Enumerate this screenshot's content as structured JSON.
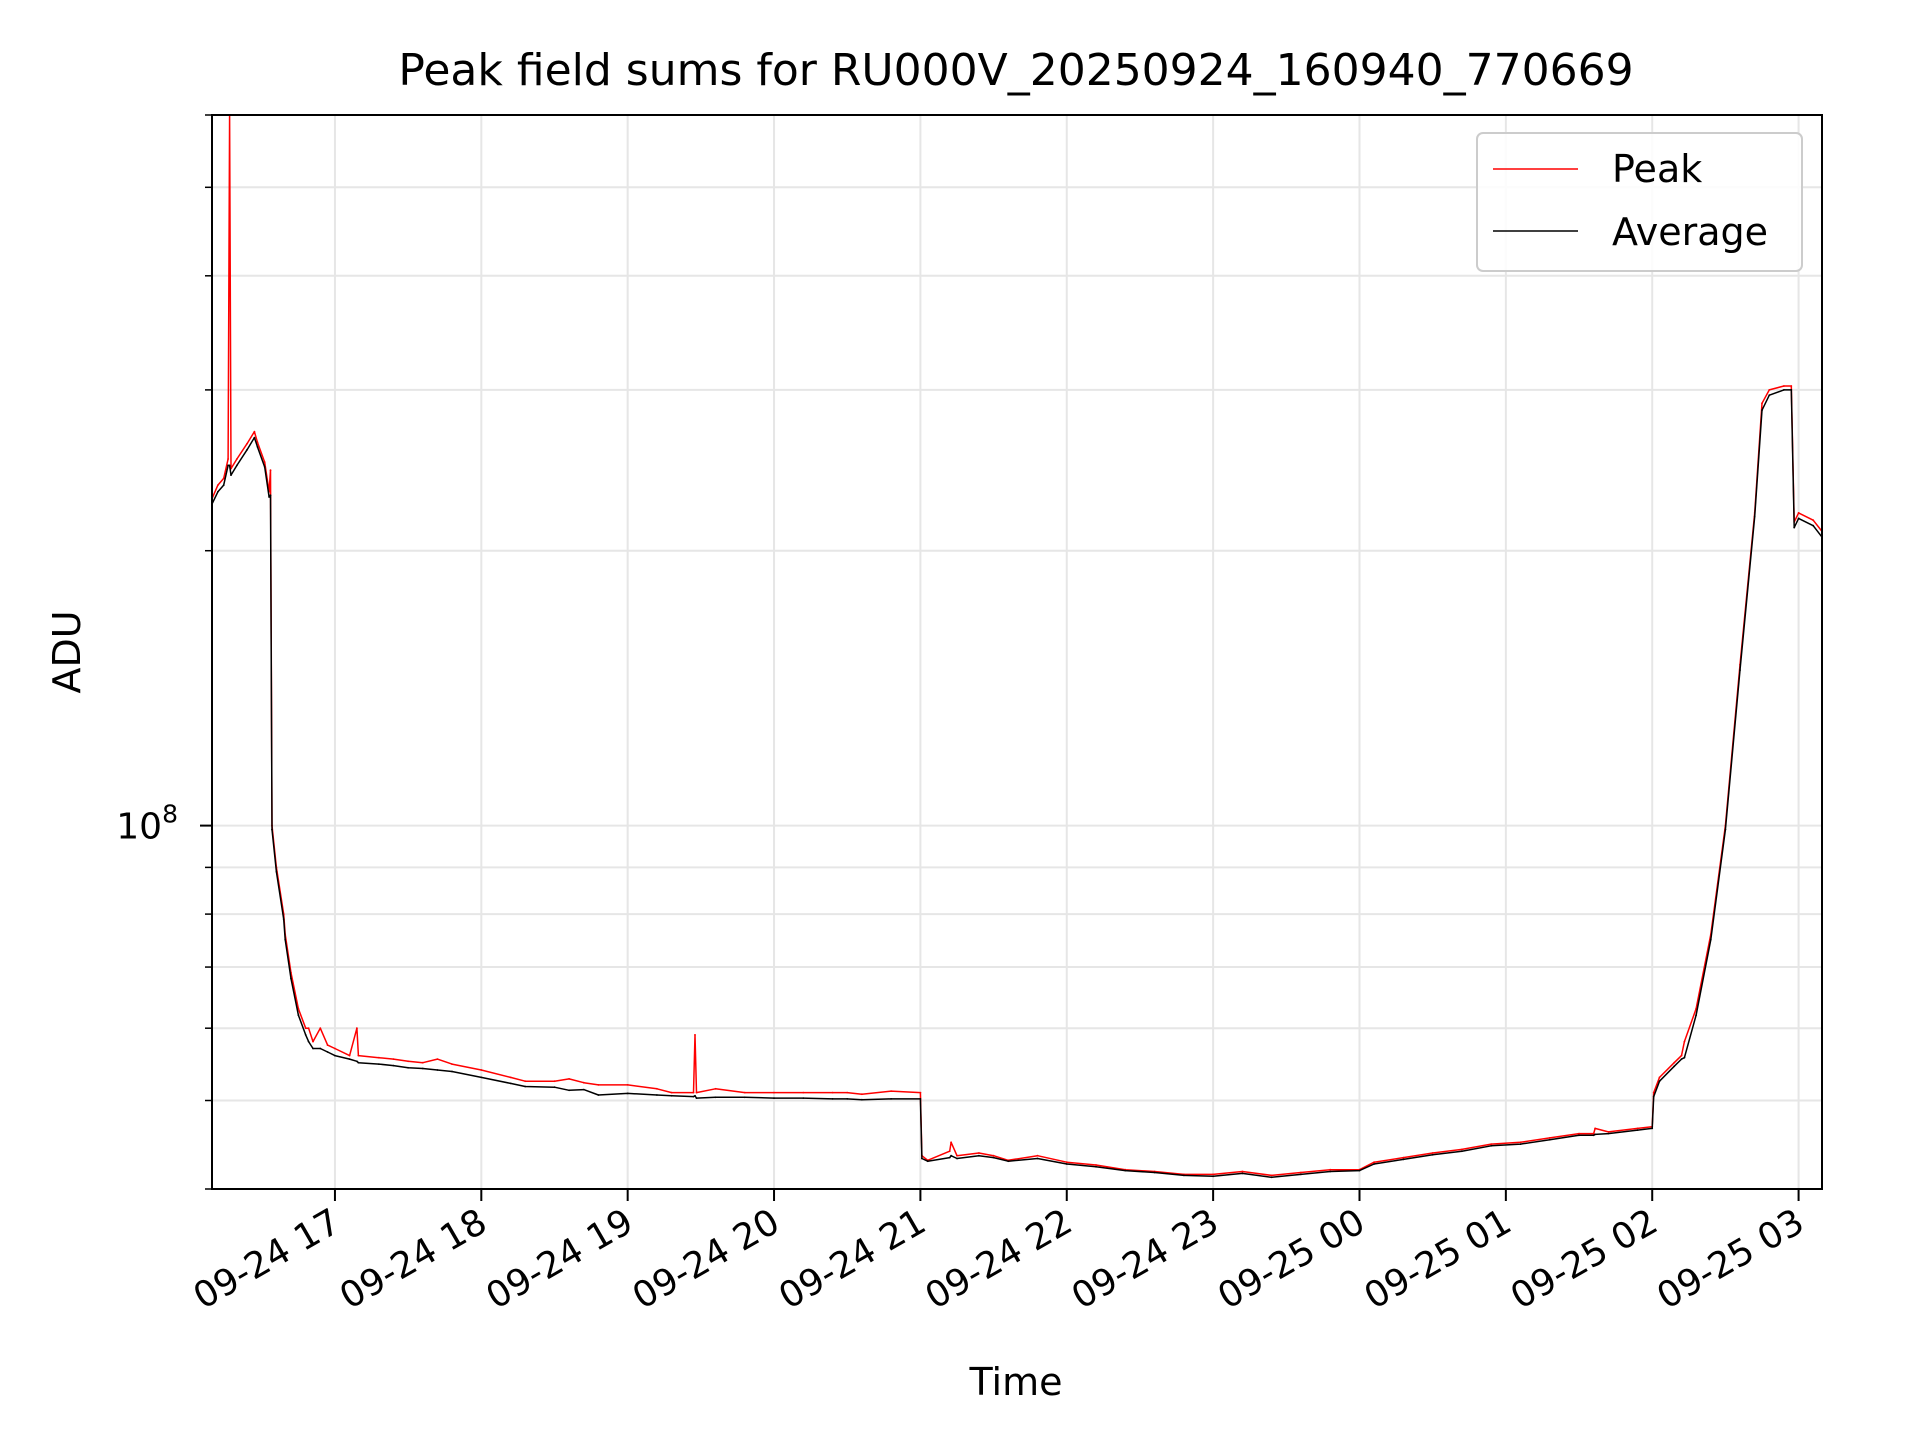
{
  "chart_data": {
    "type": "line",
    "title": "Peak field sums for RU000V_20250924_160940_770669",
    "xlabel": "Time",
    "ylabel": "ADU",
    "yscale": "log",
    "ylim": [
      40000000,
      600000000
    ],
    "xlim_hours": [
      16.16,
      27.16
    ],
    "grid": true,
    "legend_position": "upper right",
    "x_ticks": [
      {
        "hour": 17,
        "label": "09-24 17"
      },
      {
        "hour": 18,
        "label": "09-24 18"
      },
      {
        "hour": 19,
        "label": "09-24 19"
      },
      {
        "hour": 20,
        "label": "09-24 20"
      },
      {
        "hour": 21,
        "label": "09-24 21"
      },
      {
        "hour": 22,
        "label": "09-24 22"
      },
      {
        "hour": 23,
        "label": "09-24 23"
      },
      {
        "hour": 24,
        "label": "09-25 00"
      },
      {
        "hour": 25,
        "label": "09-25 01"
      },
      {
        "hour": 26,
        "label": "09-25 02"
      },
      {
        "hour": 27,
        "label": "09-25 03"
      }
    ],
    "y_major_ticks": [
      {
        "value": 100000000,
        "base": "10",
        "exp": "8"
      }
    ],
    "y_minor_tick_values": [
      40000000,
      50000000,
      60000000,
      70000000,
      80000000,
      90000000,
      200000000,
      300000000,
      400000000,
      500000000,
      600000000
    ],
    "series": [
      {
        "name": "Peak",
        "color": "#ff0000",
        "points": [
          [
            16.16,
            228000000
          ],
          [
            16.2,
            236000000
          ],
          [
            16.24,
            240000000
          ],
          [
            16.27,
            252000000
          ],
          [
            16.28,
            600000000
          ],
          [
            16.29,
            246000000
          ],
          [
            16.33,
            252000000
          ],
          [
            16.4,
            262000000
          ],
          [
            16.45,
            270000000
          ],
          [
            16.47,
            263000000
          ],
          [
            16.52,
            250000000
          ],
          [
            16.55,
            232000000
          ],
          [
            16.56,
            245000000
          ],
          [
            16.57,
            100000000
          ],
          [
            16.6,
            90000000
          ],
          [
            16.65,
            80000000
          ],
          [
            16.66,
            76000000
          ],
          [
            16.7,
            69000000
          ],
          [
            16.75,
            63000000
          ],
          [
            16.8,
            60000000
          ],
          [
            16.82,
            60000000
          ],
          [
            16.85,
            58000000
          ],
          [
            16.9,
            60000000
          ],
          [
            16.95,
            57500000
          ],
          [
            17.0,
            57000000
          ],
          [
            17.1,
            56000000
          ],
          [
            17.15,
            60000000
          ],
          [
            17.16,
            56000000
          ],
          [
            17.3,
            55700000
          ],
          [
            17.4,
            55500000
          ],
          [
            17.5,
            55200000
          ],
          [
            17.6,
            55000000
          ],
          [
            17.7,
            55500000
          ],
          [
            17.8,
            54800000
          ],
          [
            18.0,
            54000000
          ],
          [
            18.2,
            53000000
          ],
          [
            18.3,
            52500000
          ],
          [
            18.5,
            52500000
          ],
          [
            18.6,
            52800000
          ],
          [
            18.7,
            52300000
          ],
          [
            18.8,
            52000000
          ],
          [
            19.0,
            52000000
          ],
          [
            19.2,
            51500000
          ],
          [
            19.3,
            51000000
          ],
          [
            19.45,
            51000000
          ],
          [
            19.46,
            59000000
          ],
          [
            19.47,
            51000000
          ],
          [
            19.6,
            51500000
          ],
          [
            19.8,
            51000000
          ],
          [
            20.0,
            51000000
          ],
          [
            20.2,
            51000000
          ],
          [
            20.4,
            51000000
          ],
          [
            20.5,
            51000000
          ],
          [
            20.6,
            50800000
          ],
          [
            20.8,
            51200000
          ],
          [
            21.0,
            51000000
          ],
          [
            21.01,
            43500000
          ],
          [
            21.05,
            43000000
          ],
          [
            21.2,
            44000000
          ],
          [
            21.21,
            45000000
          ],
          [
            21.25,
            43500000
          ],
          [
            21.4,
            43800000
          ],
          [
            21.5,
            43500000
          ],
          [
            21.6,
            43000000
          ],
          [
            21.8,
            43500000
          ],
          [
            22.0,
            42800000
          ],
          [
            22.2,
            42500000
          ],
          [
            22.4,
            42000000
          ],
          [
            22.6,
            41800000
          ],
          [
            22.8,
            41500000
          ],
          [
            23.0,
            41500000
          ],
          [
            23.2,
            41800000
          ],
          [
            23.4,
            41400000
          ],
          [
            23.6,
            41700000
          ],
          [
            23.8,
            42000000
          ],
          [
            24.0,
            42000000
          ],
          [
            24.1,
            42800000
          ],
          [
            24.3,
            43300000
          ],
          [
            24.5,
            43800000
          ],
          [
            24.7,
            44200000
          ],
          [
            24.9,
            44800000
          ],
          [
            25.1,
            45000000
          ],
          [
            25.3,
            45500000
          ],
          [
            25.5,
            46000000
          ],
          [
            25.6,
            46000000
          ],
          [
            25.61,
            46600000
          ],
          [
            25.7,
            46200000
          ],
          [
            25.9,
            46600000
          ],
          [
            26.0,
            46800000
          ],
          [
            26.01,
            51000000
          ],
          [
            26.05,
            53000000
          ],
          [
            26.15,
            55000000
          ],
          [
            26.2,
            56000000
          ],
          [
            26.22,
            58000000
          ],
          [
            26.3,
            63000000
          ],
          [
            26.4,
            76000000
          ],
          [
            26.5,
            100000000
          ],
          [
            26.6,
            150000000
          ],
          [
            26.7,
            220000000
          ],
          [
            26.75,
            290000000
          ],
          [
            26.8,
            300000000
          ],
          [
            26.9,
            303000000
          ],
          [
            26.95,
            303000000
          ],
          [
            26.97,
            215000000
          ],
          [
            27.0,
            220000000
          ],
          [
            27.1,
            216000000
          ],
          [
            27.16,
            210000000
          ]
        ]
      },
      {
        "name": "Average",
        "color": "#000000",
        "points": [
          [
            16.16,
            225000000
          ],
          [
            16.2,
            232000000
          ],
          [
            16.24,
            236000000
          ],
          [
            16.27,
            248000000
          ],
          [
            16.28,
            248000000
          ],
          [
            16.29,
            242000000
          ],
          [
            16.33,
            248000000
          ],
          [
            16.4,
            258000000
          ],
          [
            16.45,
            266000000
          ],
          [
            16.47,
            260000000
          ],
          [
            16.52,
            247000000
          ],
          [
            16.55,
            229000000
          ],
          [
            16.56,
            230000000
          ],
          [
            16.57,
            99000000
          ],
          [
            16.6,
            89000000
          ],
          [
            16.65,
            79000000
          ],
          [
            16.66,
            75000000
          ],
          [
            16.7,
            68000000
          ],
          [
            16.75,
            62000000
          ],
          [
            16.8,
            59000000
          ],
          [
            16.82,
            58000000
          ],
          [
            16.85,
            57000000
          ],
          [
            16.9,
            57000000
          ],
          [
            16.95,
            56500000
          ],
          [
            17.0,
            56000000
          ],
          [
            17.1,
            55500000
          ],
          [
            17.15,
            55200000
          ],
          [
            17.16,
            55000000
          ],
          [
            17.3,
            54800000
          ],
          [
            17.4,
            54600000
          ],
          [
            17.5,
            54300000
          ],
          [
            17.6,
            54200000
          ],
          [
            17.7,
            54000000
          ],
          [
            17.8,
            53800000
          ],
          [
            18.0,
            53000000
          ],
          [
            18.2,
            52200000
          ],
          [
            18.3,
            51800000
          ],
          [
            18.5,
            51700000
          ],
          [
            18.6,
            51300000
          ],
          [
            18.7,
            51400000
          ],
          [
            18.8,
            50700000
          ],
          [
            19.0,
            50900000
          ],
          [
            19.2,
            50700000
          ],
          [
            19.3,
            50600000
          ],
          [
            19.45,
            50500000
          ],
          [
            19.46,
            50600000
          ],
          [
            19.47,
            50300000
          ],
          [
            19.6,
            50400000
          ],
          [
            19.8,
            50400000
          ],
          [
            20.0,
            50300000
          ],
          [
            20.2,
            50300000
          ],
          [
            20.4,
            50200000
          ],
          [
            20.5,
            50200000
          ],
          [
            20.6,
            50100000
          ],
          [
            20.8,
            50200000
          ],
          [
            21.0,
            50200000
          ],
          [
            21.01,
            43200000
          ],
          [
            21.05,
            42900000
          ],
          [
            21.2,
            43300000
          ],
          [
            21.21,
            43500000
          ],
          [
            21.25,
            43200000
          ],
          [
            21.4,
            43500000
          ],
          [
            21.5,
            43300000
          ],
          [
            21.6,
            42900000
          ],
          [
            21.8,
            43200000
          ],
          [
            22.0,
            42600000
          ],
          [
            22.2,
            42300000
          ],
          [
            22.4,
            41900000
          ],
          [
            22.6,
            41700000
          ],
          [
            22.8,
            41400000
          ],
          [
            23.0,
            41300000
          ],
          [
            23.2,
            41600000
          ],
          [
            23.4,
            41200000
          ],
          [
            23.6,
            41500000
          ],
          [
            23.8,
            41800000
          ],
          [
            24.0,
            41900000
          ],
          [
            24.1,
            42600000
          ],
          [
            24.3,
            43100000
          ],
          [
            24.5,
            43600000
          ],
          [
            24.7,
            44000000
          ],
          [
            24.9,
            44600000
          ],
          [
            25.1,
            44800000
          ],
          [
            25.3,
            45300000
          ],
          [
            25.5,
            45800000
          ],
          [
            25.6,
            45800000
          ],
          [
            25.61,
            45900000
          ],
          [
            25.7,
            46000000
          ],
          [
            25.9,
            46400000
          ],
          [
            26.0,
            46600000
          ],
          [
            26.01,
            50500000
          ],
          [
            26.05,
            52500000
          ],
          [
            26.15,
            54500000
          ],
          [
            26.2,
            55500000
          ],
          [
            26.22,
            55700000
          ],
          [
            26.3,
            62000000
          ],
          [
            26.4,
            75000000
          ],
          [
            26.5,
            99000000
          ],
          [
            26.6,
            148000000
          ],
          [
            26.7,
            218000000
          ],
          [
            26.75,
            285000000
          ],
          [
            26.8,
            296000000
          ],
          [
            26.9,
            300000000
          ],
          [
            26.95,
            300000000
          ],
          [
            26.97,
            212000000
          ],
          [
            27.0,
            217000000
          ],
          [
            27.1,
            213000000
          ],
          [
            27.16,
            207000000
          ]
        ]
      }
    ]
  }
}
